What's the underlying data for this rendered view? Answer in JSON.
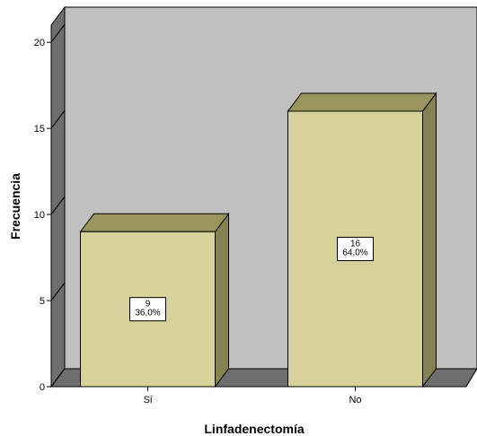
{
  "chart_data": {
    "type": "bar",
    "title": "",
    "xlabel": "Linfadenectomía",
    "ylabel": "Frecuencia",
    "categories": [
      "Si",
      "No"
    ],
    "values": [
      9,
      16
    ],
    "data_labels": [
      [
        "9",
        "36,0%"
      ],
      [
        "16",
        "64,0%"
      ]
    ],
    "ylim": [
      0,
      21
    ],
    "yticks": [
      0,
      5,
      10,
      15,
      20
    ],
    "grid": false,
    "legend": "none",
    "style": "3d",
    "colors": {
      "bar_front": "#D7D19A",
      "bar_top": "#9A955D",
      "bar_side": "#858251",
      "back_wall": "#C0C0C0",
      "left_wall": "#6E6E6E",
      "floor": "#6E6E6E",
      "outline": "#000000"
    }
  }
}
